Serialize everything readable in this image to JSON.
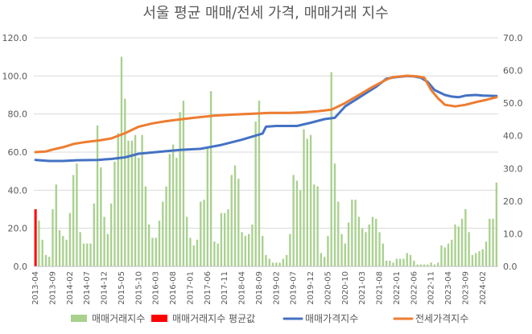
{
  "chart_data": {
    "type": "bar",
    "title": "서울 평균 매매/전세 가격, 매매거래 지수",
    "y_left": {
      "min": 0,
      "max": 120,
      "step": 20,
      "ticks": [
        "0.0",
        "20.0",
        "40.0",
        "60.0",
        "80.0",
        "100.0",
        "120.0"
      ]
    },
    "y_right": {
      "min": 0,
      "max": 70,
      "step": 10,
      "ticks": [
        "0.0",
        "10.0",
        "20.0",
        "30.0",
        "40.0",
        "50.0",
        "60.0",
        "70.0"
      ]
    },
    "x_tick_labels": [
      {
        "month": 0,
        "label": "2013-04"
      },
      {
        "month": 5,
        "label": "2013-09"
      },
      {
        "month": 10,
        "label": "2014-02"
      },
      {
        "month": 15,
        "label": "2014-07"
      },
      {
        "month": 20,
        "label": "2014-12"
      },
      {
        "month": 25,
        "label": "2015-05"
      },
      {
        "month": 30,
        "label": "2015-10"
      },
      {
        "month": 35,
        "label": "2016-03"
      },
      {
        "month": 40,
        "label": "2016-08"
      },
      {
        "month": 45,
        "label": "2017-01"
      },
      {
        "month": 50,
        "label": "2017-06"
      },
      {
        "month": 55,
        "label": "2017-11"
      },
      {
        "month": 60,
        "label": "2018-04"
      },
      {
        "month": 65,
        "label": "2018-09"
      },
      {
        "month": 70,
        "label": "2019-02"
      },
      {
        "month": 75,
        "label": "2019-07"
      },
      {
        "month": 80,
        "label": "2019-12"
      },
      {
        "month": 85,
        "label": "2020-05"
      },
      {
        "month": 90,
        "label": "2020-10"
      },
      {
        "month": 95,
        "label": "2021-03"
      },
      {
        "month": 100,
        "label": "2021-08"
      },
      {
        "month": 105,
        "label": "2022-01"
      },
      {
        "month": 110,
        "label": "2022-06"
      },
      {
        "month": 115,
        "label": "2022-11"
      },
      {
        "month": 120,
        "label": "2023-04"
      },
      {
        "month": 125,
        "label": "2023-09"
      },
      {
        "month": 130,
        "label": "2024-02"
      }
    ],
    "series": [
      {
        "name": "매매거래지수",
        "type": "bar",
        "axis": "left",
        "color": "#a9d18e",
        "values": [
          22,
          24,
          14,
          6,
          5,
          30,
          43,
          19,
          16,
          14,
          28,
          48,
          54,
          18,
          12,
          12,
          12,
          33,
          74,
          52,
          26,
          17,
          33,
          55,
          70,
          110,
          88,
          66,
          66,
          69,
          57,
          69,
          42,
          22,
          15,
          15,
          24,
          34,
          42,
          59,
          64,
          57,
          81,
          87,
          26,
          15,
          11,
          14,
          34,
          35,
          63,
          92,
          13,
          12,
          28,
          28,
          30,
          48,
          53,
          46,
          18,
          16,
          17,
          22,
          76,
          87,
          16,
          6,
          4,
          2,
          2,
          2,
          4,
          6,
          17,
          48,
          45,
          40,
          72,
          67,
          69,
          43,
          42,
          7,
          5,
          16,
          102,
          54,
          34,
          17,
          12,
          23,
          35,
          35,
          26,
          20,
          18,
          22,
          26,
          25,
          18,
          12,
          3,
          3,
          2,
          4,
          4,
          4,
          7,
          6,
          3,
          1,
          1,
          1,
          1,
          2,
          1,
          2,
          11,
          10,
          12,
          14,
          22,
          21,
          25,
          30,
          18,
          6,
          7,
          8,
          9,
          13,
          25,
          25,
          44
        ]
      },
      {
        "name": "매매거래지수 평균값",
        "type": "bar",
        "axis": "left",
        "color": "#ff0000",
        "values": [
          {
            "month": 0,
            "value": 30
          }
        ]
      },
      {
        "name": "매매가격지수",
        "type": "line",
        "axis": "right",
        "color": "#4472c4",
        "points": [
          [
            0,
            32.6
          ],
          [
            4,
            32.3
          ],
          [
            8,
            32.3
          ],
          [
            12,
            32.5
          ],
          [
            18,
            32.6
          ],
          [
            22,
            32.9
          ],
          [
            26,
            33.4
          ],
          [
            30,
            34.5
          ],
          [
            36,
            35.1
          ],
          [
            42,
            35.7
          ],
          [
            48,
            36.0
          ],
          [
            54,
            37.2
          ],
          [
            60,
            38.8
          ],
          [
            66,
            40.7
          ],
          [
            67,
            42.8
          ],
          [
            70,
            43.0
          ],
          [
            76,
            43.0
          ],
          [
            80,
            44.0
          ],
          [
            84,
            45.1
          ],
          [
            87,
            45.5
          ],
          [
            90,
            49.0
          ],
          [
            93,
            51.0
          ],
          [
            96,
            53.0
          ],
          [
            99,
            55.0
          ],
          [
            102,
            57.5
          ],
          [
            105,
            58.0
          ],
          [
            108,
            58.3
          ],
          [
            110,
            58.2
          ],
          [
            112,
            57.8
          ],
          [
            114,
            56.5
          ],
          [
            116,
            54.0
          ],
          [
            119,
            52.5
          ],
          [
            121,
            52.0
          ],
          [
            123,
            51.8
          ],
          [
            125,
            52.3
          ],
          [
            128,
            52.5
          ],
          [
            130,
            52.3
          ],
          [
            134,
            52.2
          ]
        ]
      },
      {
        "name": "전세가격지수",
        "type": "line",
        "axis": "right",
        "color": "#ed7d31",
        "points": [
          [
            0,
            35.0
          ],
          [
            3,
            35.2
          ],
          [
            5,
            35.8
          ],
          [
            8,
            36.5
          ],
          [
            11,
            37.5
          ],
          [
            14,
            38.0
          ],
          [
            18,
            38.5
          ],
          [
            22,
            39.2
          ],
          [
            26,
            40.8
          ],
          [
            30,
            42.8
          ],
          [
            34,
            43.8
          ],
          [
            38,
            44.5
          ],
          [
            42,
            45.0
          ],
          [
            46,
            45.5
          ],
          [
            52,
            46.2
          ],
          [
            58,
            46.5
          ],
          [
            64,
            46.8
          ],
          [
            68,
            47.0
          ],
          [
            74,
            47.0
          ],
          [
            78,
            47.2
          ],
          [
            82,
            47.5
          ],
          [
            86,
            48.0
          ],
          [
            90,
            50.0
          ],
          [
            94,
            52.5
          ],
          [
            98,
            55.0
          ],
          [
            102,
            57.2
          ],
          [
            104,
            58.0
          ],
          [
            108,
            58.4
          ],
          [
            111,
            58.2
          ],
          [
            113,
            57.8
          ],
          [
            115,
            54.0
          ],
          [
            117,
            51.5
          ],
          [
            119,
            49.5
          ],
          [
            122,
            49.0
          ],
          [
            125,
            49.5
          ],
          [
            128,
            50.3
          ],
          [
            131,
            51.0
          ],
          [
            134,
            51.8
          ]
        ]
      }
    ],
    "legend": {
      "position": "bottom",
      "entries": [
        {
          "label": "매매거래지수",
          "color": "#a9d18e",
          "kind": "bar"
        },
        {
          "label": "매매거래지수 평균값",
          "color": "#ff0000",
          "kind": "bar"
        },
        {
          "label": "매매가격지수",
          "color": "#4472c4",
          "kind": "line"
        },
        {
          "label": "전세가격지수",
          "color": "#ed7d31",
          "kind": "line"
        }
      ]
    },
    "gridlines": true
  }
}
